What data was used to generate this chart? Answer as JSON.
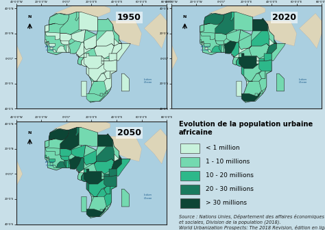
{
  "title": "Evolution de la population urbaine africaine",
  "legend_categories": [
    "< 1 million",
    "1 - 10 millions",
    "10 - 20 millions",
    "20 - 30 millions",
    "> 30 millions"
  ],
  "legend_colors": [
    "#c8f2dc",
    "#74d9b0",
    "#2db88a",
    "#1a7a5e",
    "#0d4535"
  ],
  "map_years": [
    "1950",
    "2020",
    "2050"
  ],
  "ocean_color": "#aacfe0",
  "land_other_color": "#ddd5b8",
  "map_border_color": "#222222",
  "panel_bg": "#c8dfe8",
  "legend_bg": "#d8eef5",
  "source_text": "Source : Nations Unies, Département des affaires économiques\net sociales, Division de la population (2018).\nWorld Urbanization Prospects: The 2018 Revision, édition en ligne",
  "title_fontsize": 7.2,
  "legend_fontsize": 6.5,
  "source_fontsize": 4.8,
  "year_fontsize": 9,
  "country_colors_1950": {
    "DZA": 1,
    "EGY": 1,
    "LBY": 0,
    "MAR": 1,
    "TUN": 1,
    "MRT": 0,
    "MLI": 0,
    "NER": 0,
    "TCD": 0,
    "SDN": 0,
    "ETH": 0,
    "SOM": 0,
    "DJI": 0,
    "ERI": 0,
    "SEN": 0,
    "GMB": 0,
    "GNB": 0,
    "GIN": 0,
    "SLE": 0,
    "LBR": 0,
    "CIV": 0,
    "GHA": 1,
    "TGO": 0,
    "BEN": 0,
    "NGA": 1,
    "CMR": 0,
    "CAF": 0,
    "COD": 0,
    "COG": 0,
    "GAB": 0,
    "GNQ": 0,
    "AGO": 0,
    "ZMB": 0,
    "MWI": 0,
    "MOZ": 0,
    "ZWE": 0,
    "NAM": 0,
    "BWA": 0,
    "ZAF": 1,
    "TZA": 0,
    "KEN": 0,
    "UGA": 0,
    "RWA": 0,
    "BDI": 0,
    "SSD": 0,
    "MDG": 0,
    "BFA": 0
  },
  "country_colors_2020": {
    "DZA": 3,
    "EGY": 4,
    "LBY": 1,
    "MAR": 3,
    "TUN": 2,
    "ESH": 0,
    "MRT": 1,
    "MLI": 1,
    "NER": 1,
    "TCD": 1,
    "SDN": 2,
    "ETH": 3,
    "SSD": 1,
    "SOM": 1,
    "DJI": 0,
    "ERI": 0,
    "SEN": 1,
    "GMB": 0,
    "GNB": 0,
    "GIN": 1,
    "SLE": 0,
    "LBR": 0,
    "CIV": 2,
    "GHA": 2,
    "TGO": 1,
    "BEN": 1,
    "NGA": 4,
    "CMR": 2,
    "CAF": 0,
    "COD": 4,
    "COG": 1,
    "GAB": 0,
    "GNQ": 0,
    "AGO": 2,
    "ZMB": 1,
    "MWI": 1,
    "MOZ": 1,
    "ZWE": 1,
    "NAM": 0,
    "BWA": 0,
    "ZAF": 4,
    "TZA": 2,
    "KEN": 2,
    "UGA": 2,
    "RWA": 0,
    "BDI": 0,
    "MDG": 1,
    "BFA": 1,
    "HTI": 0
  },
  "country_colors_2050": {
    "DZA": 4,
    "EGY": 4,
    "LBY": 1,
    "MAR": 4,
    "TUN": 3,
    "ESH": 0,
    "MRT": 1,
    "MLI": 2,
    "NER": 2,
    "TCD": 2,
    "SDN": 3,
    "ETH": 4,
    "SSD": 2,
    "SOM": 2,
    "DJI": 0,
    "ERI": 0,
    "SEN": 2,
    "GMB": 0,
    "GNB": 0,
    "GIN": 2,
    "SLE": 1,
    "LBR": 1,
    "CIV": 3,
    "GHA": 3,
    "TGO": 2,
    "BEN": 2,
    "NGA": 4,
    "CMR": 3,
    "CAF": 1,
    "COD": 4,
    "COG": 2,
    "GAB": 0,
    "GNQ": 0,
    "AGO": 3,
    "ZMB": 2,
    "MWI": 2,
    "MOZ": 2,
    "ZWE": 2,
    "NAM": 1,
    "BWA": 1,
    "ZAF": 4,
    "TZA": 3,
    "KEN": 3,
    "UGA": 3,
    "RWA": 1,
    "BDI": 1,
    "MDG": 1,
    "BFA": 2
  }
}
